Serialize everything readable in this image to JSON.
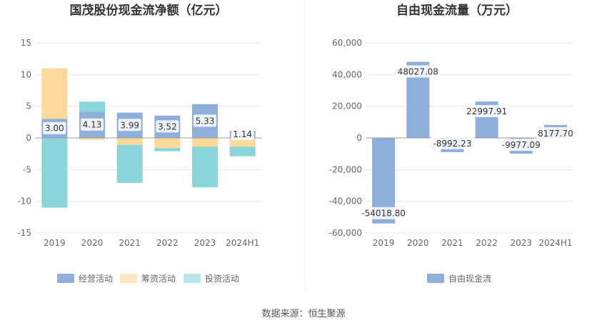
{
  "source": "数据来源：恒生聚源",
  "chart_data": [
    {
      "type": "bar",
      "stacked": true,
      "title": "国茂股份现金流净额（亿元）",
      "categories": [
        "2019",
        "2020",
        "2021",
        "2022",
        "2023",
        "2024H1"
      ],
      "ylim": [
        -15,
        15
      ],
      "yticks": [
        "15",
        "10",
        "5",
        "0",
        "-5",
        "-10",
        "-15"
      ],
      "grid": true,
      "legend_position": "bottom",
      "series": [
        {
          "name": "经营活动",
          "color": "#8eaedb",
          "values": [
            3.0,
            4.13,
            3.99,
            3.52,
            5.33,
            1.14
          ],
          "labels": [
            "3.00",
            "4.13",
            "3.99",
            "3.52",
            "5.33",
            "1.14"
          ]
        },
        {
          "name": "筹资活动",
          "color": "#fdd99b",
          "values": [
            8.0,
            -0.3,
            -1.1,
            -1.6,
            -1.4,
            -1.4
          ]
        },
        {
          "name": "投资活动",
          "color": "#8ad5d9",
          "values": [
            -11.0,
            1.6,
            -6.0,
            -0.5,
            -6.4,
            -1.5
          ]
        }
      ]
    },
    {
      "type": "bar",
      "title": "自由现金流量（万元）",
      "categories": [
        "2019",
        "2020",
        "2021",
        "2022",
        "2023",
        "2024H1"
      ],
      "ylim": [
        -60000,
        60000
      ],
      "yticks": [
        "60,000",
        "40,000",
        "20,000",
        "0",
        "-20,000",
        "-40,000",
        "-60,000"
      ],
      "grid": true,
      "legend_position": "bottom",
      "series": [
        {
          "name": "自由现金流",
          "color": "#8eaedb",
          "values": [
            -54018.8,
            48027.08,
            -8992.23,
            22997.91,
            -9977.09,
            8177.7
          ],
          "labels": [
            "-54018.80",
            "48027.08",
            "-8992.23",
            "22997.91",
            "-9977.09",
            "8177.70"
          ]
        }
      ]
    }
  ]
}
